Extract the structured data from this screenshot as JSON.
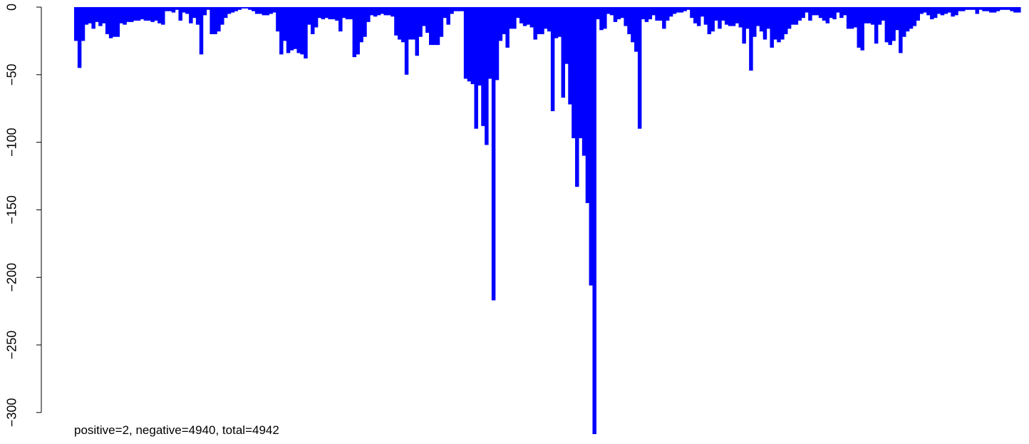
{
  "chart_data": {
    "type": "bar",
    "title": "",
    "xlabel": "",
    "ylabel": "",
    "ylim": [
      -316,
      0
    ],
    "y_ticks": [
      0,
      -50,
      -100,
      -150,
      -200,
      -250,
      -300
    ],
    "y_tick_labels": [
      "0",
      "−50",
      "−100",
      "−150",
      "−200",
      "−250",
      "−300"
    ],
    "grid": false,
    "colors": {
      "negative": "#0000ff",
      "positive": "#ff0000"
    },
    "annotation": "positive=2, negative=4940, total=4942",
    "values": [
      -25,
      -45,
      -25,
      -13,
      -12,
      -16,
      -11,
      -14,
      -12,
      -20,
      -23,
      -22,
      -22,
      -12,
      -13,
      -11,
      -11,
      -10,
      -10,
      -9,
      -10,
      -10,
      -11,
      -10,
      -12,
      -13,
      -3,
      -3,
      -4,
      -2,
      -10,
      -4,
      -5,
      -12,
      -8,
      -13,
      -35,
      -6,
      -2,
      -20,
      -20,
      -18,
      -13,
      -8,
      -5,
      -4,
      -3,
      -2,
      -1,
      -1,
      -2,
      -3,
      -5,
      -5,
      -6,
      -6,
      -5,
      -4,
      -18,
      -35,
      -25,
      -34,
      -32,
      -31,
      -34,
      -35,
      -38,
      -13,
      -20,
      -15,
      -8,
      -9,
      -8,
      -9,
      -9,
      -10,
      -18,
      -8,
      -9,
      -9,
      -37,
      -35,
      -26,
      -22,
      -11,
      -6,
      -7,
      -6,
      -5,
      -6,
      -6,
      -7,
      -21,
      -24,
      -26,
      -50,
      -24,
      -24,
      -36,
      -22,
      -14,
      -19,
      -28,
      -28,
      -28,
      -22,
      -8,
      -13,
      -5,
      -3,
      -3,
      -3,
      -53,
      -55,
      -57,
      -90,
      -58,
      -88,
      -102,
      -53,
      -217,
      -54,
      -25,
      -20,
      -30,
      -16,
      -16,
      -8,
      -12,
      -14,
      -13,
      -15,
      -24,
      -20,
      -20,
      -16,
      -18,
      -77,
      -23,
      -22,
      -67,
      -42,
      -72,
      -97,
      -133,
      -97,
      -110,
      -145,
      -206,
      -316,
      -9,
      -17,
      -16,
      -5,
      -6,
      -11,
      -9,
      -8,
      -14,
      -20,
      -26,
      -33,
      -90,
      -9,
      -11,
      -9,
      -6,
      -10,
      -10,
      -16,
      -10,
      -7,
      -5,
      -4,
      -4,
      -3,
      -2,
      -8,
      -12,
      -14,
      -7,
      -13,
      -20,
      -18,
      -10,
      -16,
      -10,
      -13,
      -14,
      -14,
      -12,
      -15,
      -27,
      -16,
      -47,
      -22,
      -14,
      -18,
      -24,
      -16,
      -30,
      -24,
      -26,
      -24,
      -20,
      -16,
      -13,
      -13,
      -10,
      -8,
      -4,
      -10,
      -6,
      -6,
      -8,
      -10,
      -12,
      -8,
      -9,
      -4,
      -8,
      -6,
      -16,
      -16,
      -15,
      -30,
      -32,
      -12,
      -12,
      -13,
      -27,
      -13,
      -10,
      -26,
      -28,
      -25,
      -17,
      -34,
      -22,
      -18,
      -16,
      -14,
      -10,
      -5,
      -4,
      -6,
      -9,
      -8,
      -5,
      -6,
      -5,
      -4,
      -7,
      -6,
      -3,
      -3,
      -2,
      -2,
      -2,
      -5,
      -2,
      -3,
      -3,
      -4,
      -4,
      -3,
      -2,
      -2,
      -2,
      -3,
      -4,
      -4
    ]
  }
}
